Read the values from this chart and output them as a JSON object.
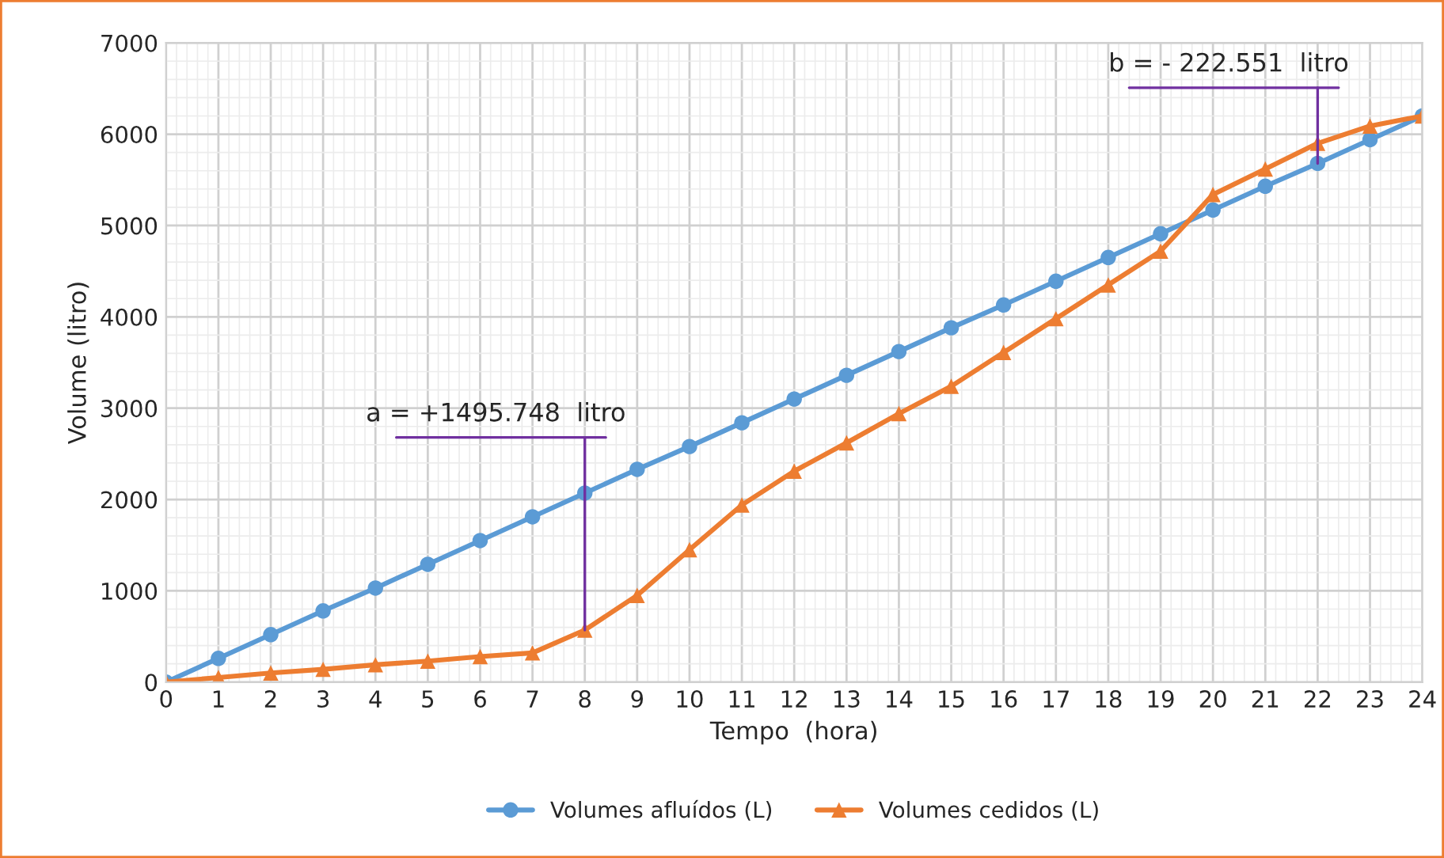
{
  "chart_data": {
    "type": "line",
    "xlabel": "Tempo  (hora)",
    "ylabel": "Volume (litro)",
    "x": [
      0,
      1,
      2,
      3,
      4,
      5,
      6,
      7,
      8,
      9,
      10,
      11,
      12,
      13,
      14,
      15,
      16,
      17,
      18,
      19,
      20,
      21,
      22,
      23,
      24
    ],
    "xlim": [
      0,
      24
    ],
    "xticks": [
      0,
      1,
      2,
      3,
      4,
      5,
      6,
      7,
      8,
      9,
      10,
      11,
      12,
      13,
      14,
      15,
      16,
      17,
      18,
      19,
      20,
      21,
      22,
      23,
      24
    ],
    "ylim": [
      0,
      7000
    ],
    "yticks": [
      0,
      1000,
      2000,
      3000,
      4000,
      5000,
      6000,
      7000
    ],
    "grid": true,
    "legend": "bottom",
    "line_style": "solid",
    "series": [
      {
        "name": "Volumes afluídos (L)",
        "color": "#5b9bd5",
        "marker": "circle",
        "values": [
          0,
          260,
          520,
          780,
          1030,
          1290,
          1550,
          1810,
          2070,
          2330,
          2580,
          2840,
          3100,
          3360,
          3620,
          3880,
          4130,
          4390,
          4650,
          4910,
          5170,
          5430,
          5680,
          5940,
          6200
        ]
      },
      {
        "name": "Volumes cedidos (L)",
        "color": "#ed7d31",
        "marker": "triangle",
        "values": [
          0,
          50,
          100,
          140,
          190,
          230,
          280,
          320,
          570,
          950,
          1450,
          1940,
          2310,
          2620,
          2940,
          3240,
          3610,
          3980,
          4350,
          4720,
          5340,
          5620,
          5900,
          6090,
          6200
        ]
      }
    ],
    "annotations": [
      {
        "text": "a = +1495.748  litro",
        "x": 8,
        "y": 2070
      },
      {
        "text": "b = - 222.551  litro",
        "x": 22,
        "y": 5680
      }
    ]
  }
}
